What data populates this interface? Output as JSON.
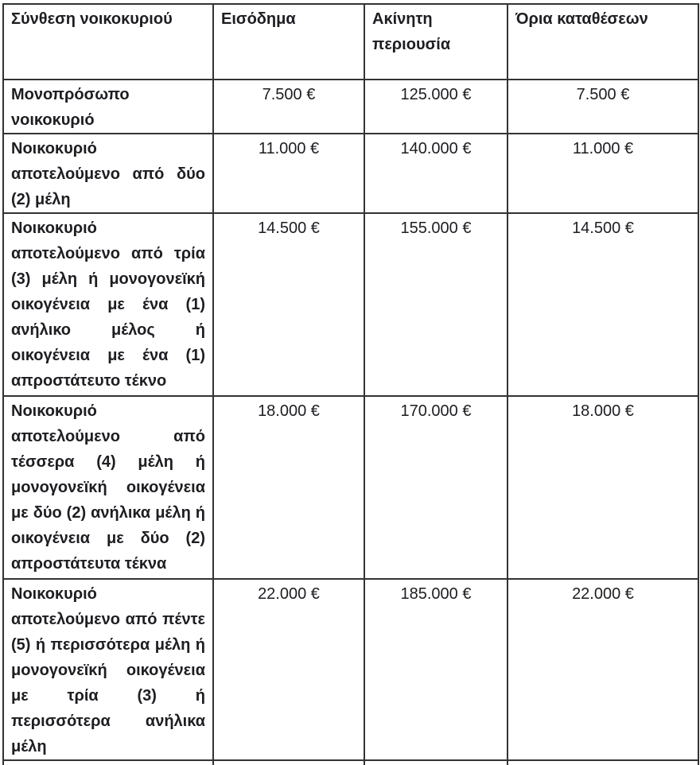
{
  "document": {
    "language": "el",
    "colors": {
      "text": "#1d1d22",
      "border": "#333333",
      "background": "#ffffff"
    }
  },
  "table": {
    "headers": [
      "Σύνθεση νοικοκυριού",
      "Εισόδημα",
      "Ακίνητη περιουσία",
      "Όρια καταθέσεων"
    ],
    "rows": [
      {
        "composition": "Μονοπρόσωπο νοικοκυριό",
        "income": "7.500 €",
        "property": "125.000 €",
        "deposits": "7.500 €"
      },
      {
        "composition": "Νοικοκυριό αποτελούμενο από δύο (2) μέλη",
        "income": "11.000 €",
        "property": "140.000 €",
        "deposits": "11.000 €"
      },
      {
        "composition": "Νοικοκυριό αποτελούμενο από τρία (3) μέλη ή μονογονεϊκή οικογένεια με ένα (1) ανήλικο μέλος ή οικογένεια με ένα (1) απροστάτευτο τέκνο",
        "income": "14.500 €",
        "property": "155.000 €",
        "deposits": "14.500 €"
      },
      {
        "composition": "Νοικοκυριό αποτελούμενο από τέσσερα (4) μέλη ή μονογονεϊκή οικογένεια με δύο (2) ανήλικα μέλη ή οικογένεια με δύο (2) απροστάτευτα τέκνα",
        "income": "18.000 €",
        "property": "170.000 €",
        "deposits": "18.000 €"
      },
      {
        "composition": "Νοικοκυριό αποτελούμενο από πέντε (5) ή περισσότερα μέλη ή μονογονεϊκή οικογένεια με τρία (3) ή περισσότερα ανήλικα μέλη",
        "income": "22.000 €",
        "property": "185.000 €",
        "deposits": "22.000 €"
      }
    ]
  }
}
